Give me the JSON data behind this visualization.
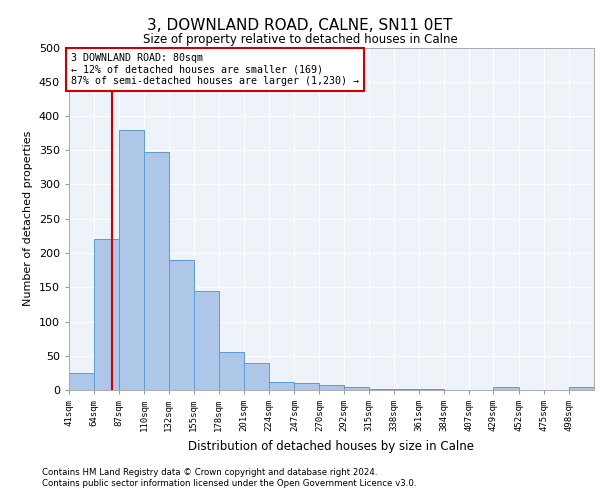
{
  "title": "3, DOWNLAND ROAD, CALNE, SN11 0ET",
  "subtitle": "Size of property relative to detached houses in Calne",
  "xlabel": "Distribution of detached houses by size in Calne",
  "ylabel": "Number of detached properties",
  "bin_labels": [
    "41sqm",
    "64sqm",
    "87sqm",
    "110sqm",
    "132sqm",
    "155sqm",
    "178sqm",
    "201sqm",
    "224sqm",
    "247sqm",
    "270sqm",
    "292sqm",
    "315sqm",
    "338sqm",
    "361sqm",
    "384sqm",
    "407sqm",
    "429sqm",
    "452sqm",
    "475sqm",
    "498sqm"
  ],
  "bin_edges": [
    41,
    64,
    87,
    110,
    132,
    155,
    178,
    201,
    224,
    247,
    270,
    292,
    315,
    338,
    361,
    384,
    407,
    429,
    452,
    475,
    498
  ],
  "bar_heights": [
    25,
    220,
    380,
    348,
    190,
    145,
    55,
    40,
    12,
    10,
    8,
    4,
    1,
    1,
    1,
    0,
    0,
    4,
    0,
    0,
    4
  ],
  "bar_color": "#aec6e8",
  "bar_edge_color": "#5b9bd5",
  "property_size": 80,
  "annotation_line_color": "#cc0000",
  "annotation_box_text": [
    "3 DOWNLAND ROAD: 80sqm",
    "← 12% of detached houses are smaller (169)",
    "87% of semi-detached houses are larger (1,230) →"
  ],
  "annotation_box_color": "#cc0000",
  "ylim": [
    0,
    500
  ],
  "yticks": [
    0,
    50,
    100,
    150,
    200,
    250,
    300,
    350,
    400,
    450,
    500
  ],
  "bg_color": "#eef2f9",
  "grid_color": "#ffffff",
  "footer_line1": "Contains HM Land Registry data © Crown copyright and database right 2024.",
  "footer_line2": "Contains public sector information licensed under the Open Government Licence v3.0."
}
